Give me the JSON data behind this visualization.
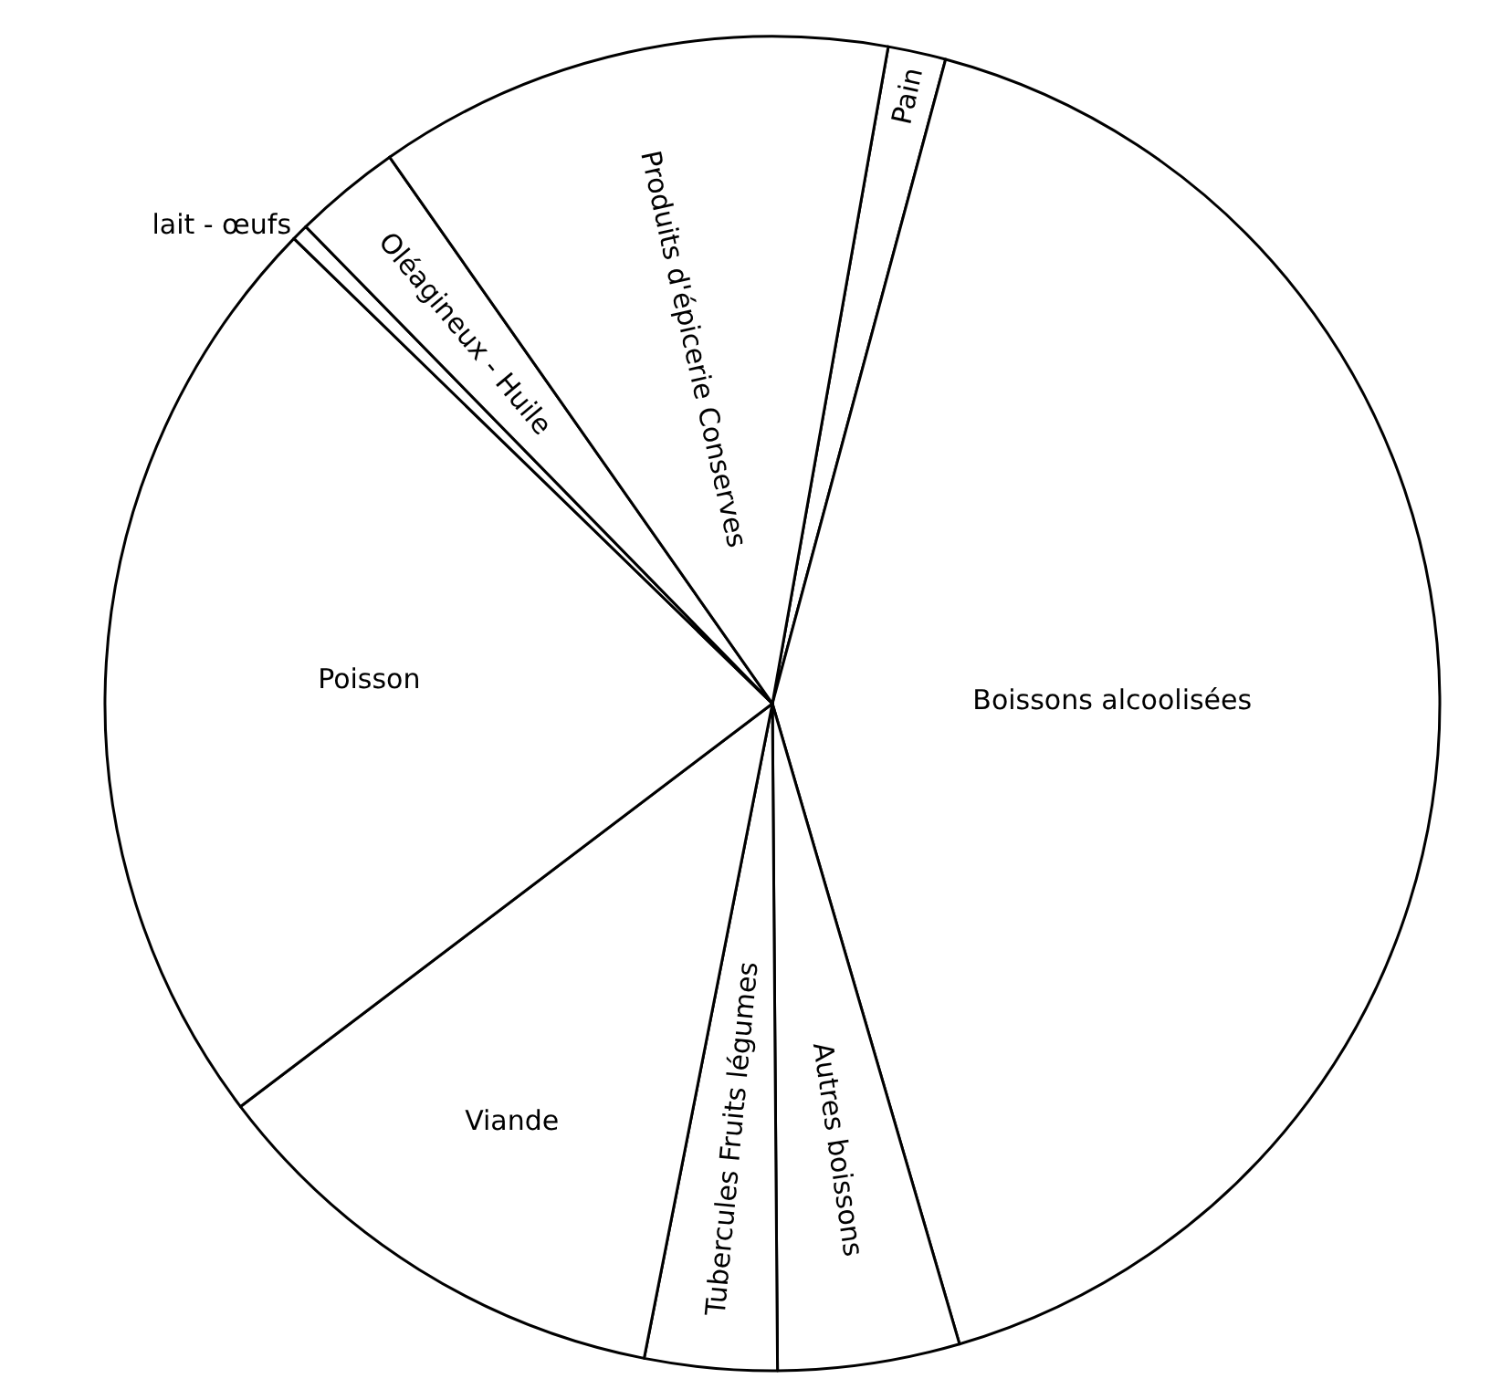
{
  "chart_data": {
    "type": "pie",
    "categories": [
      "Pain",
      "Boissons alcoolisées",
      "Autres boissons",
      "Tubercules Fruits légumes",
      "Viande",
      "Poisson",
      "lait - œufs",
      "Oléagineux - Huile",
      "Produits d'épicerie Conserves"
    ],
    "values": [
      1.4,
      41.3,
      4.4,
      3.2,
      11.6,
      22.6,
      0.4,
      2.6,
      12.5
    ],
    "colors": [
      "#ffffff",
      "#ffffff",
      "#ffffff",
      "#ffffff",
      "#ffffff",
      "#ffffff",
      "#ffffff",
      "#ffffff",
      "#ffffff"
    ]
  }
}
